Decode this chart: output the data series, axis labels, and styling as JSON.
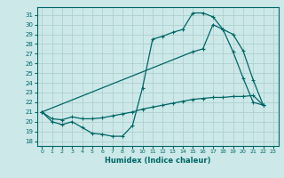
{
  "xlabel": "Humidex (Indice chaleur)",
  "bg_color": "#cce8e8",
  "grid_color": "#b0d0d0",
  "line_color": "#006666",
  "xlim": [
    -0.5,
    23.5
  ],
  "ylim": [
    17.5,
    31.8
  ],
  "xticks": [
    0,
    1,
    2,
    3,
    4,
    5,
    6,
    7,
    8,
    9,
    10,
    11,
    12,
    13,
    14,
    15,
    16,
    17,
    18,
    19,
    20,
    21,
    22,
    23
  ],
  "yticks": [
    18,
    19,
    20,
    21,
    22,
    23,
    24,
    25,
    26,
    27,
    28,
    29,
    30,
    31
  ],
  "curve1_x": [
    0,
    1,
    2,
    3,
    4,
    5,
    6,
    7,
    8,
    9,
    10,
    11,
    12,
    13,
    14,
    15,
    16,
    17,
    18,
    19,
    20,
    21,
    22
  ],
  "curve1_y": [
    21.0,
    20.0,
    19.7,
    20.0,
    19.4,
    18.8,
    18.7,
    18.5,
    18.5,
    19.6,
    23.5,
    28.5,
    28.8,
    29.2,
    29.5,
    31.2,
    31.2,
    30.8,
    29.5,
    29.0,
    27.3,
    24.3,
    21.7
  ],
  "curve2_x": [
    0,
    15,
    16,
    17,
    18,
    19,
    20,
    21,
    22
  ],
  "curve2_y": [
    21.0,
    27.2,
    27.5,
    30.0,
    29.5,
    27.2,
    24.5,
    22.0,
    21.7
  ],
  "curve3_x": [
    0,
    1,
    2,
    3,
    4,
    5,
    6,
    7,
    8,
    9,
    10,
    11,
    12,
    13,
    14,
    15,
    16,
    17,
    18,
    19,
    20,
    21,
    22
  ],
  "curve3_y": [
    21.0,
    20.3,
    20.2,
    20.5,
    20.3,
    20.3,
    20.4,
    20.6,
    20.8,
    21.0,
    21.3,
    21.5,
    21.7,
    21.9,
    22.1,
    22.3,
    22.4,
    22.5,
    22.5,
    22.6,
    22.6,
    22.7,
    21.7
  ]
}
